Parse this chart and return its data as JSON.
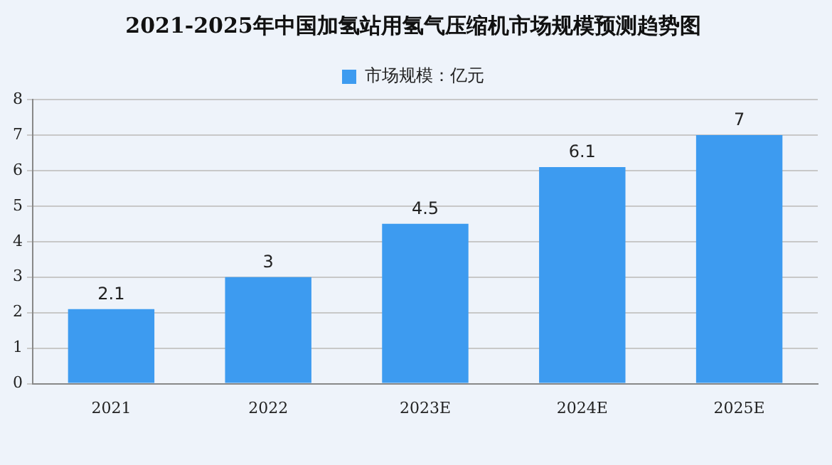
{
  "chart_data": {
    "type": "bar",
    "title": "2021-2025年中国加氢站用氢气压缩机市场规模预测趋势图",
    "categories": [
      "2021",
      "2022",
      "2023E",
      "2024E",
      "2025E"
    ],
    "series": [
      {
        "name": "市场规模：亿元",
        "color": "#3d9bf0",
        "values": [
          2.1,
          3,
          4.5,
          6.1,
          7
        ]
      }
    ],
    "ylim": [
      0,
      8
    ],
    "yticks": [
      0,
      1,
      2,
      3,
      4,
      5,
      6,
      7,
      8
    ],
    "grid": "y",
    "legend": "top",
    "data_labels": true
  }
}
